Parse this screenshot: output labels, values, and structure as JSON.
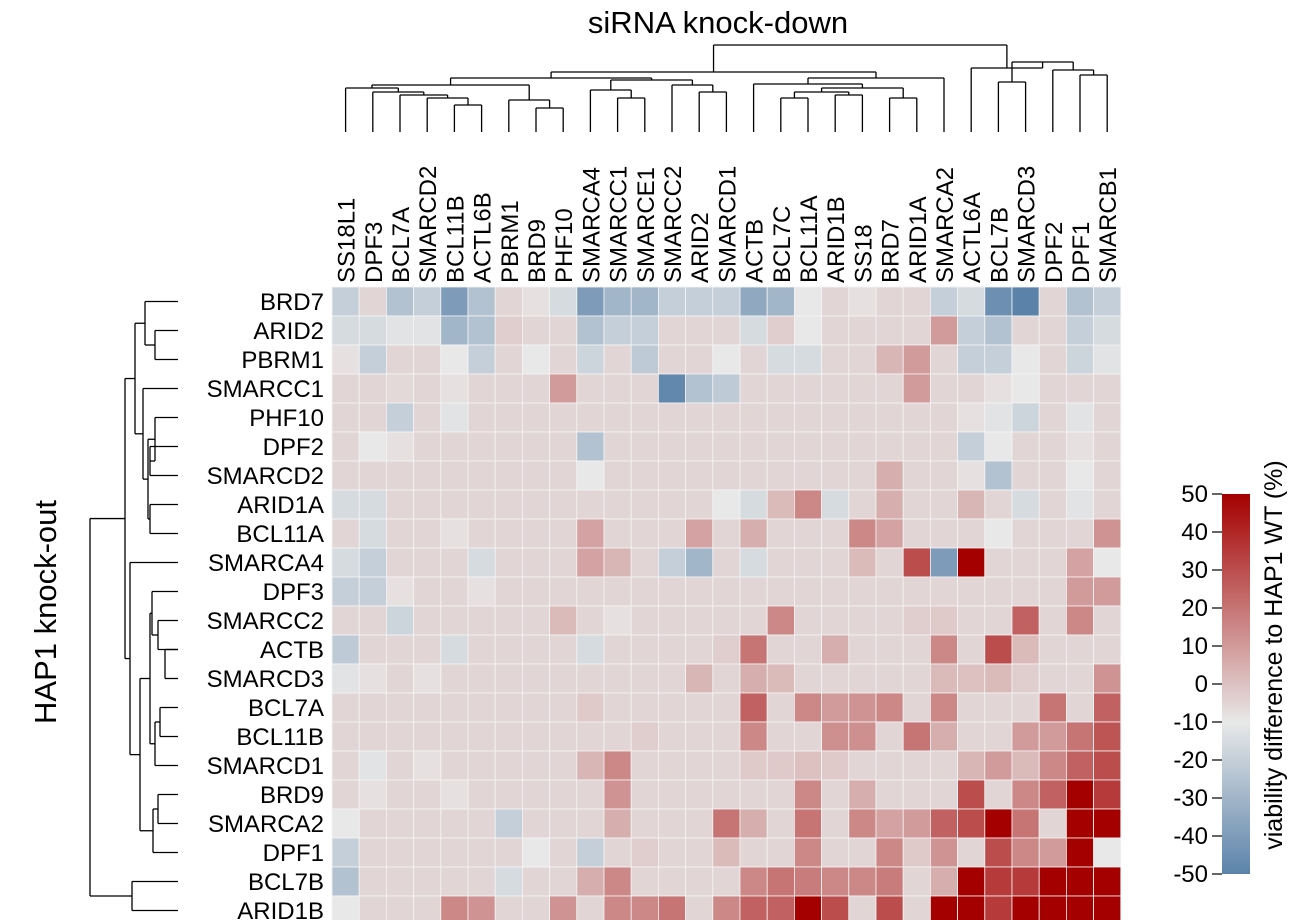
{
  "chart_data": {
    "type": "heatmap",
    "title": "siRNA knock-down",
    "ylabel": "HAP1 knock-out",
    "columns": [
      "SS18L1",
      "DPF3",
      "BCL7A",
      "SMARCD2",
      "BCL11B",
      "ACTL6B",
      "PBRM1",
      "BRD9",
      "PHF10",
      "SMARCA4",
      "SMARCC1",
      "SMARCE1",
      "SMARCC2",
      "ARID2",
      "SMARCD1",
      "ACTB",
      "BCL7C",
      "BCL11A",
      "ARID1B",
      "SS18",
      "BRD7",
      "ARID1A",
      "SMARCA2",
      "ACTL6A",
      "BCL7B",
      "SMARCD3",
      "DPF2",
      "DPF1",
      "SMARCB1"
    ],
    "rows": [
      "BRD7",
      "ARID2",
      "PBRM1",
      "SMARCC1",
      "PHF10",
      "DPF2",
      "SMARCD2",
      "ARID1A",
      "BCL11A",
      "SMARCA4",
      "DPF3",
      "SMARCC2",
      "ACTB",
      "SMARCD3",
      "BCL7A",
      "BCL11B",
      "SMARCD1",
      "BRD9",
      "SMARCA2",
      "DPF1",
      "BCL7B",
      "ARID1B"
    ],
    "values": [
      [
        -20,
        -5,
        -25,
        -20,
        -40,
        -25,
        -5,
        -8,
        -15,
        -40,
        -30,
        -30,
        -20,
        -20,
        -20,
        -35,
        -30,
        -10,
        -5,
        -8,
        -5,
        -5,
        -20,
        -15,
        -45,
        -50,
        -5,
        -25,
        -20
      ],
      [
        -15,
        -15,
        -12,
        -12,
        -30,
        -25,
        -3,
        -5,
        -5,
        -25,
        -20,
        -20,
        -5,
        -5,
        -5,
        -15,
        -3,
        -10,
        -5,
        -5,
        -5,
        -5,
        10,
        -20,
        -25,
        -5,
        -5,
        -20,
        -15
      ],
      [
        -8,
        -20,
        -5,
        -5,
        -10,
        -20,
        -5,
        -10,
        -5,
        -18,
        -5,
        -22,
        -5,
        -5,
        -10,
        -5,
        -15,
        -15,
        -5,
        -5,
        3,
        10,
        -5,
        -20,
        -20,
        -10,
        -5,
        -18,
        -12
      ],
      [
        -5,
        -5,
        -6,
        -5,
        -8,
        -5,
        -5,
        -5,
        10,
        -5,
        -5,
        -5,
        -48,
        -25,
        -22,
        -5,
        -5,
        -5,
        -5,
        -5,
        -5,
        10,
        -5,
        -5,
        -8,
        -10,
        -5,
        -5,
        -5
      ],
      [
        -5,
        -5,
        -20,
        -5,
        -12,
        -5,
        -5,
        -5,
        -5,
        -5,
        -5,
        -5,
        -5,
        -5,
        -5,
        -5,
        -5,
        -5,
        -5,
        -5,
        -5,
        -5,
        -5,
        -8,
        -12,
        -18,
        -5,
        -12,
        -5
      ],
      [
        -5,
        -10,
        -8,
        -5,
        -5,
        -5,
        -5,
        -5,
        -5,
        -25,
        -5,
        -5,
        -5,
        -5,
        -5,
        -5,
        -5,
        -5,
        -5,
        -5,
        -5,
        -5,
        -5,
        -20,
        -10,
        -5,
        -5,
        -8,
        -5
      ],
      [
        -5,
        -5,
        -5,
        -5,
        -5,
        -5,
        -5,
        -5,
        -5,
        -10,
        -5,
        -5,
        -5,
        -5,
        -5,
        -5,
        -5,
        -5,
        -5,
        -5,
        5,
        -5,
        -5,
        -8,
        -25,
        -5,
        -5,
        -10,
        -5
      ],
      [
        -15,
        -15,
        -5,
        -5,
        -5,
        -5,
        -5,
        -5,
        -5,
        -5,
        -5,
        -5,
        -5,
        -5,
        -10,
        -15,
        2,
        15,
        -15,
        -5,
        5,
        -5,
        -5,
        3,
        -5,
        -15,
        -5,
        -12,
        -5
      ],
      [
        -5,
        -15,
        -5,
        -5,
        -8,
        -5,
        -5,
        -5,
        -5,
        8,
        -5,
        -5,
        -5,
        8,
        -5,
        5,
        -5,
        -5,
        -5,
        15,
        8,
        -5,
        -5,
        -5,
        -10,
        -5,
        -5,
        -5,
        12
      ],
      [
        -15,
        -20,
        -5,
        -5,
        -5,
        -15,
        -5,
        -5,
        -5,
        8,
        3,
        -5,
        -20,
        -30,
        -5,
        -15,
        -5,
        -5,
        -5,
        2,
        -5,
        30,
        -40,
        50,
        -5,
        -5,
        -5,
        8,
        -10
      ],
      [
        -20,
        -20,
        -8,
        -5,
        -5,
        -8,
        -5,
        -5,
        -5,
        -5,
        -5,
        -5,
        -5,
        -5,
        -5,
        -5,
        -5,
        -5,
        -5,
        -5,
        -5,
        -5,
        -5,
        -5,
        -5,
        -5,
        -5,
        10,
        10
      ],
      [
        -5,
        -5,
        -18,
        -5,
        -5,
        -5,
        -5,
        -5,
        2,
        -5,
        -8,
        -5,
        -5,
        -5,
        -5,
        -5,
        15,
        -5,
        -5,
        -5,
        -5,
        -3,
        -2,
        -5,
        -5,
        25,
        -5,
        15,
        -5
      ],
      [
        -22,
        -5,
        -5,
        -5,
        -15,
        -5,
        -5,
        -5,
        -5,
        -15,
        -5,
        -5,
        -5,
        -5,
        -3,
        20,
        -5,
        -5,
        5,
        -5,
        -5,
        -5,
        15,
        -5,
        30,
        2,
        -5,
        -5,
        -5
      ],
      [
        -12,
        -8,
        -5,
        -8,
        -5,
        -5,
        -5,
        -5,
        -5,
        -5,
        -5,
        -5,
        -5,
        3,
        -5,
        5,
        2,
        -5,
        -5,
        -5,
        -5,
        -5,
        2,
        0,
        2,
        -3,
        -5,
        -5,
        12
      ],
      [
        -5,
        -5,
        -5,
        -5,
        -5,
        -5,
        -5,
        -5,
        -5,
        -2,
        -5,
        -5,
        -5,
        -5,
        -5,
        25,
        -5,
        15,
        10,
        12,
        15,
        -5,
        15,
        -5,
        -5,
        -5,
        20,
        -5,
        25
      ],
      [
        -5,
        -5,
        -5,
        -5,
        -5,
        -5,
        -5,
        -5,
        -5,
        -5,
        -5,
        -3,
        -5,
        -5,
        -5,
        15,
        -5,
        -5,
        13,
        13,
        -5,
        20,
        5,
        -5,
        -5,
        10,
        10,
        20,
        28
      ],
      [
        -5,
        -12,
        -5,
        -8,
        -5,
        -5,
        -5,
        -5,
        -5,
        3,
        15,
        -5,
        -5,
        -5,
        -5,
        -2,
        -2,
        0,
        -2,
        -5,
        -5,
        -5,
        -5,
        3,
        10,
        2,
        15,
        25,
        30
      ],
      [
        -5,
        -8,
        -5,
        -5,
        -8,
        -5,
        -5,
        -5,
        -5,
        -5,
        12,
        -5,
        -5,
        -5,
        -5,
        -5,
        -5,
        15,
        -5,
        5,
        -5,
        -5,
        -5,
        30,
        -5,
        15,
        25,
        50,
        35
      ],
      [
        -10,
        -5,
        -5,
        -5,
        -5,
        -5,
        -20,
        -5,
        -5,
        -5,
        5,
        -5,
        -5,
        -5,
        20,
        5,
        -5,
        20,
        -5,
        15,
        8,
        10,
        25,
        30,
        50,
        20,
        -5,
        50,
        50
      ],
      [
        -20,
        -5,
        -5,
        -5,
        -5,
        -5,
        -5,
        -10,
        -5,
        -20,
        -5,
        -3,
        -5,
        -5,
        2,
        -5,
        -5,
        15,
        -5,
        -5,
        15,
        -2,
        12,
        -5,
        30,
        15,
        10,
        50,
        -10
      ],
      [
        -25,
        -5,
        -5,
        -5,
        -5,
        -5,
        -15,
        -5,
        -5,
        5,
        15,
        -5,
        -5,
        -5,
        -5,
        15,
        20,
        18,
        15,
        15,
        18,
        -5,
        5,
        50,
        35,
        35,
        50,
        50,
        50
      ],
      [
        -10,
        -5,
        -5,
        -5,
        15,
        12,
        -5,
        -5,
        12,
        -5,
        15,
        15,
        20,
        -5,
        15,
        25,
        25,
        50,
        30,
        -5,
        30,
        -5,
        50,
        50,
        35,
        50,
        50,
        50,
        50
      ]
    ],
    "scale": {
      "title": "viability difference to HAP1 WT (%)",
      "min": -50,
      "max": 50,
      "ticks": [
        "50",
        "40",
        "30",
        "20",
        "10",
        "0",
        "-10",
        "-20",
        "-30",
        "-40",
        "-50"
      ],
      "colors": [
        "#5b83aa",
        "#e8e8e8",
        "#a50000"
      ]
    }
  }
}
